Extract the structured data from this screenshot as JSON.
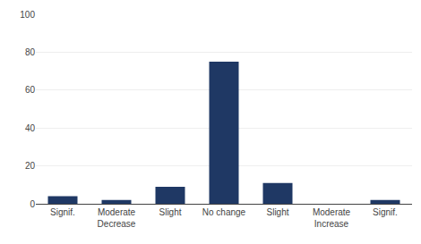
{
  "chart_data": {
    "type": "bar",
    "categories": [
      "Signif.",
      "Moderate\nDecrease",
      "Slight",
      "No change",
      "Slight",
      "Moderate\nIncrease",
      "Signif."
    ],
    "values": [
      4,
      2,
      9,
      75,
      11,
      0,
      2
    ],
    "color": "#1f3864",
    "ylim": [
      0,
      100
    ],
    "yticks": [
      0,
      20,
      40,
      60,
      80,
      100
    ],
    "grid": true
  }
}
